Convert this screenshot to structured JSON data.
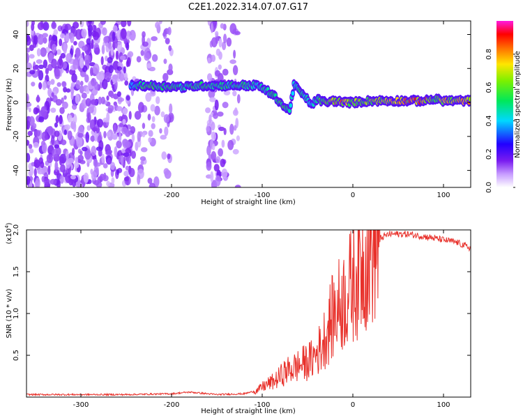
{
  "title": "C2E1.2022.314.07.07.G17",
  "colors": {
    "snr_line": "#e8302a",
    "noise_purple": "#8a2be2",
    "background": "#ffffff"
  },
  "chart_data": [
    {
      "type": "heatmap",
      "name": "spectrogram",
      "xlabel": "Height of straight line (km)",
      "ylabel": "Frequency (Hz)",
      "xlim": [
        -360,
        130
      ],
      "ylim": [
        -50,
        48
      ],
      "xticks": [
        -300,
        -200,
        -100,
        0,
        100
      ],
      "xtick_labels": [
        "-300",
        "-200",
        "-100",
        "0",
        "100"
      ],
      "yticks": [
        -40,
        -20,
        0,
        20,
        40
      ],
      "ytick_labels": [
        "-40",
        "-20",
        "0",
        "20",
        "40"
      ],
      "colorbar": {
        "label": "Normalized spectral amplitude",
        "range": [
          0,
          1
        ],
        "ticks": [
          0.0,
          0.2,
          0.4,
          0.6,
          0.8
        ],
        "tick_labels": [
          "0.0",
          "0.2",
          "0.4",
          "0.6",
          "0.8"
        ],
        "colormap": "rainbow (white → purple → blue → cyan → green → yellow → red → magenta)"
      },
      "noise_regions": [
        {
          "x_from": -360,
          "x_to": -245,
          "density": 1.0
        },
        {
          "x_from": -245,
          "x_to": -200,
          "density": 0.35
        },
        {
          "x_from": -160,
          "x_to": -140,
          "density": 0.8
        },
        {
          "x_from": -140,
          "x_to": -125,
          "density": 0.25
        }
      ],
      "ridge": {
        "x": [
          -245,
          -230,
          -215,
          -200,
          -185,
          -170,
          -150,
          -130,
          -120,
          -105,
          -95,
          -85,
          -75,
          -70,
          -65,
          -60,
          -55,
          -50,
          -45,
          -40,
          -35,
          -30,
          -20,
          -10,
          0,
          20,
          40,
          60,
          80,
          90,
          100,
          110,
          130
        ],
        "freq": [
          10,
          10,
          9.5,
          9.5,
          9,
          10,
          10,
          10,
          10,
          10,
          7,
          3,
          -3,
          -5,
          10,
          8,
          4,
          2,
          -2,
          2,
          1,
          0,
          1,
          0,
          0,
          1,
          1,
          1,
          1,
          2,
          1,
          1,
          1
        ],
        "amplitude": [
          0.15,
          0.5,
          0.45,
          0.4,
          0.35,
          0.45,
          0.35,
          0.35,
          0.4,
          0.3,
          0.3,
          0.4,
          0.45,
          0.3,
          0.25,
          0.35,
          0.35,
          0.25,
          0.25,
          0.35,
          0.45,
          0.55,
          0.8,
          0.9,
          0.6,
          0.6,
          0.7,
          0.9,
          0.95,
          0.5,
          0.8,
          0.7,
          0.85
        ]
      }
    },
    {
      "type": "line",
      "name": "snr",
      "xlabel": "Height of straight line (km)",
      "ylabel": "SNR (10 * v/v)",
      "y_multiplier_label": "(x10",
      "y_multiplier_exp": "4",
      "y_multiplier_close": ")",
      "xlim": [
        -360,
        130
      ],
      "ylim": [
        0,
        2.0
      ],
      "xticks": [
        -300,
        -200,
        -100,
        0,
        100
      ],
      "xtick_labels": [
        "-300",
        "-200",
        "-100",
        "0",
        "100"
      ],
      "yticks": [
        0.5,
        1.0,
        1.5,
        2.0
      ],
      "ytick_labels": [
        "0.5",
        "1.0",
        "1.5",
        "2.0"
      ],
      "x": [
        -360,
        -300,
        -250,
        -200,
        -180,
        -170,
        -160,
        -150,
        -120,
        -105,
        -100,
        -95,
        -85,
        -75,
        -65,
        -55,
        -45,
        -35,
        -25,
        -15,
        -5,
        5,
        15,
        20,
        30,
        40,
        60,
        80,
        100,
        115,
        130
      ],
      "y": [
        0.03,
        0.03,
        0.03,
        0.04,
        0.06,
        0.05,
        0.04,
        0.03,
        0.04,
        0.08,
        0.12,
        0.15,
        0.2,
        0.3,
        0.35,
        0.4,
        0.45,
        0.6,
        0.9,
        1.1,
        1.25,
        1.5,
        1.7,
        1.8,
        1.9,
        1.95,
        1.95,
        1.92,
        1.88,
        1.85,
        1.78
      ]
    }
  ]
}
